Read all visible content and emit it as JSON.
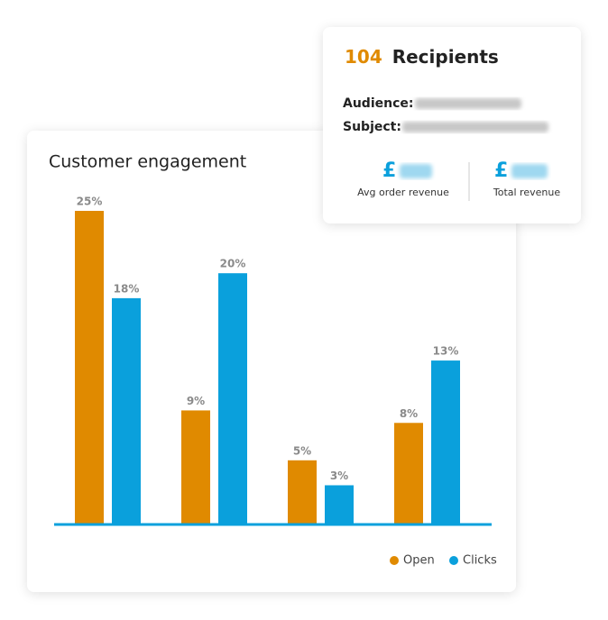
{
  "chart_data": {
    "type": "bar",
    "title": "Customer engagement",
    "categories": [
      null,
      null,
      null,
      null
    ],
    "series": [
      {
        "name": "Open",
        "color": "#e08a00",
        "values": [
          25,
          9,
          5,
          8
        ],
        "value_labels": [
          "25%",
          "9%",
          "5%",
          "8%"
        ]
      },
      {
        "name": "Clicks",
        "color": "#0aa0dc",
        "values": [
          18,
          20,
          3,
          13
        ],
        "value_labels": [
          "18%",
          "20%",
          "3%",
          "13%"
        ]
      }
    ],
    "legend": "bottom-right"
  },
  "card": {
    "count": "104",
    "title": "Recipients",
    "fields": [
      {
        "label": "Audience:"
      },
      {
        "label": "Subject:"
      }
    ],
    "metrics": [
      {
        "currency": "£",
        "label": "Avg order revenue"
      },
      {
        "currency": "£",
        "label": "Total revenue"
      }
    ]
  }
}
